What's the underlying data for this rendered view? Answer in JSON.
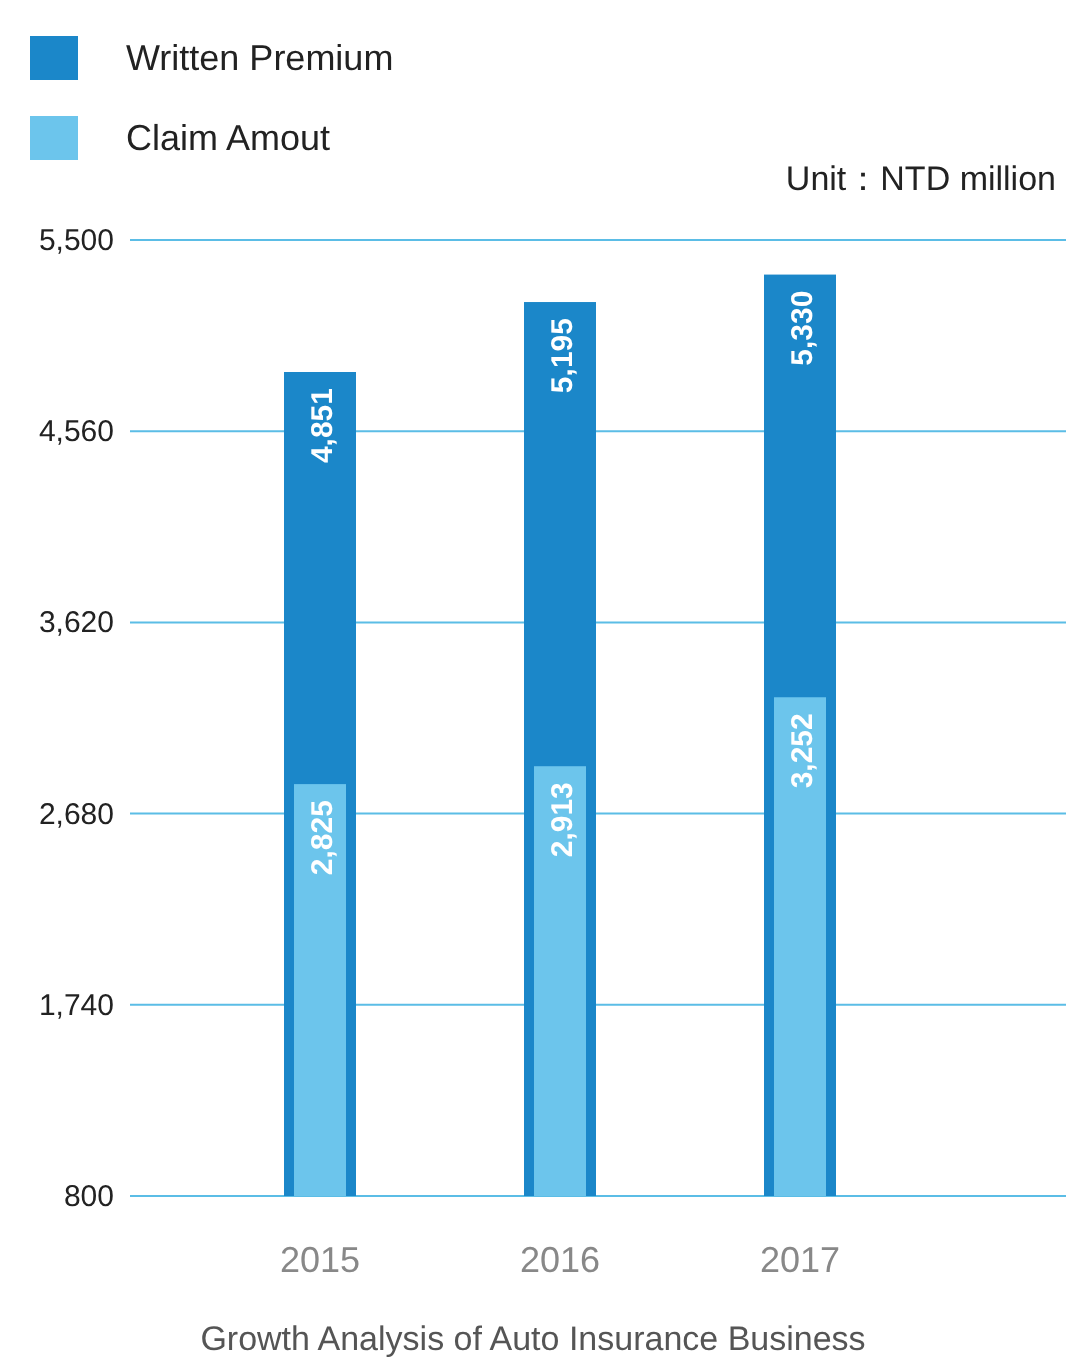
{
  "chart_data": {
    "type": "bar",
    "categories": [
      "2015",
      "2016",
      "2017"
    ],
    "series": [
      {
        "name": "Written Premium",
        "color": "#1b87c9",
        "values": [
          4851,
          5195,
          5330
        ],
        "value_labels": [
          "4,851",
          "5,195",
          "5,330"
        ]
      },
      {
        "name": "Claim Amout",
        "color": "#6cc5ec",
        "values": [
          2825,
          2913,
          3252
        ],
        "value_labels": [
          "2,825",
          "2,913",
          "3,252"
        ]
      }
    ],
    "ylim": [
      800,
      5500
    ],
    "yticks": [
      {
        "value": 800,
        "label": "800"
      },
      {
        "value": 1740,
        "label": "1,740"
      },
      {
        "value": 2680,
        "label": "2,680"
      },
      {
        "value": 3620,
        "label": "3,620"
      },
      {
        "value": 4560,
        "label": "4,560"
      },
      {
        "value": 5500,
        "label": "5,500"
      }
    ],
    "grid": "y",
    "legend": "top left",
    "annotations": [
      "Unit：NTD million"
    ],
    "xlabel": "Growth Analysis of Auto Insurance Business"
  }
}
